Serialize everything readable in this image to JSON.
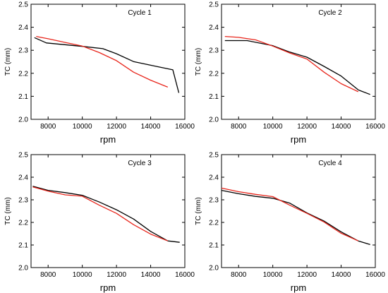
{
  "chart_data": [
    {
      "type": "line",
      "title": "Cycle 1",
      "xlabel": "rpm",
      "ylabel": "TC (mm)",
      "xlim": [
        7000,
        16000
      ],
      "ylim": [
        2.0,
        2.5
      ],
      "xticks": [
        8000,
        10000,
        12000,
        14000,
        16000
      ],
      "yticks": [
        2.0,
        2.1,
        2.2,
        2.3,
        2.4,
        2.5
      ],
      "grid": false,
      "series": [
        {
          "color": "#000000",
          "x": [
            7200,
            7900,
            10000,
            11200,
            12000,
            13000,
            14200,
            15300,
            15650
          ],
          "y": [
            2.355,
            2.332,
            2.317,
            2.307,
            2.285,
            2.251,
            2.232,
            2.215,
            2.115
          ]
        },
        {
          "color": "#e8261c",
          "x": [
            7300,
            8000,
            9000,
            10000,
            11000,
            12000,
            13000,
            14000,
            15000
          ],
          "y": [
            2.36,
            2.35,
            2.334,
            2.318,
            2.29,
            2.255,
            2.205,
            2.17,
            2.14
          ]
        }
      ]
    },
    {
      "type": "line",
      "title": "Cycle 2",
      "xlabel": "rpm",
      "ylabel": "TC (mm)",
      "xlim": [
        7000,
        16000
      ],
      "ylim": [
        2.0,
        2.5
      ],
      "xticks": [
        8000,
        10000,
        12000,
        14000,
        16000
      ],
      "yticks": [
        2.0,
        2.1,
        2.2,
        2.3,
        2.4,
        2.5
      ],
      "grid": false,
      "series": [
        {
          "color": "#000000",
          "x": [
            7200,
            8500,
            10000,
            11000,
            12000,
            13000,
            14000,
            15000,
            15700
          ],
          "y": [
            2.342,
            2.342,
            2.32,
            2.292,
            2.27,
            2.23,
            2.188,
            2.128,
            2.108
          ]
        },
        {
          "color": "#e8261c",
          "x": [
            7200,
            8000,
            9000,
            10000,
            11000,
            12000,
            13000,
            14000,
            15000
          ],
          "y": [
            2.36,
            2.356,
            2.345,
            2.318,
            2.288,
            2.262,
            2.205,
            2.155,
            2.12
          ]
        }
      ]
    },
    {
      "type": "line",
      "title": "Cycle 3",
      "xlabel": "rpm",
      "ylabel": "TC (mm)",
      "xlim": [
        7000,
        16000
      ],
      "ylim": [
        2.0,
        2.5
      ],
      "xticks": [
        8000,
        10000,
        12000,
        14000,
        16000
      ],
      "yticks": [
        2.0,
        2.1,
        2.2,
        2.3,
        2.4,
        2.5
      ],
      "grid": false,
      "series": [
        {
          "color": "#000000",
          "x": [
            7100,
            8000,
            9000,
            10000,
            11000,
            12000,
            13000,
            14000,
            15000,
            15700
          ],
          "y": [
            2.36,
            2.342,
            2.332,
            2.32,
            2.29,
            2.256,
            2.215,
            2.16,
            2.118,
            2.112
          ]
        },
        {
          "color": "#e8261c",
          "x": [
            7100,
            8000,
            9000,
            10000,
            11000,
            12000,
            13000,
            14000,
            15000
          ],
          "y": [
            2.357,
            2.338,
            2.322,
            2.316,
            2.276,
            2.24,
            2.19,
            2.148,
            2.118
          ]
        }
      ]
    },
    {
      "type": "line",
      "title": "Cycle 4",
      "xlabel": "rpm",
      "ylabel": "TC (mm)",
      "xlim": [
        7000,
        16000
      ],
      "ylim": [
        2.0,
        2.5
      ],
      "xticks": [
        8000,
        10000,
        12000,
        14000,
        16000
      ],
      "yticks": [
        2.0,
        2.1,
        2.2,
        2.3,
        2.4,
        2.5
      ],
      "grid": false,
      "series": [
        {
          "color": "#000000",
          "x": [
            7000,
            8000,
            9000,
            10000,
            11000,
            12000,
            13000,
            14000,
            15000,
            15700
          ],
          "y": [
            2.342,
            2.327,
            2.315,
            2.307,
            2.285,
            2.242,
            2.206,
            2.158,
            2.118,
            2.102
          ]
        },
        {
          "color": "#e8261c",
          "x": [
            7000,
            8000,
            9000,
            10000,
            11000,
            12000,
            13000,
            14000,
            15000
          ],
          "y": [
            2.352,
            2.336,
            2.324,
            2.314,
            2.276,
            2.24,
            2.202,
            2.152,
            2.118
          ]
        }
      ]
    }
  ]
}
